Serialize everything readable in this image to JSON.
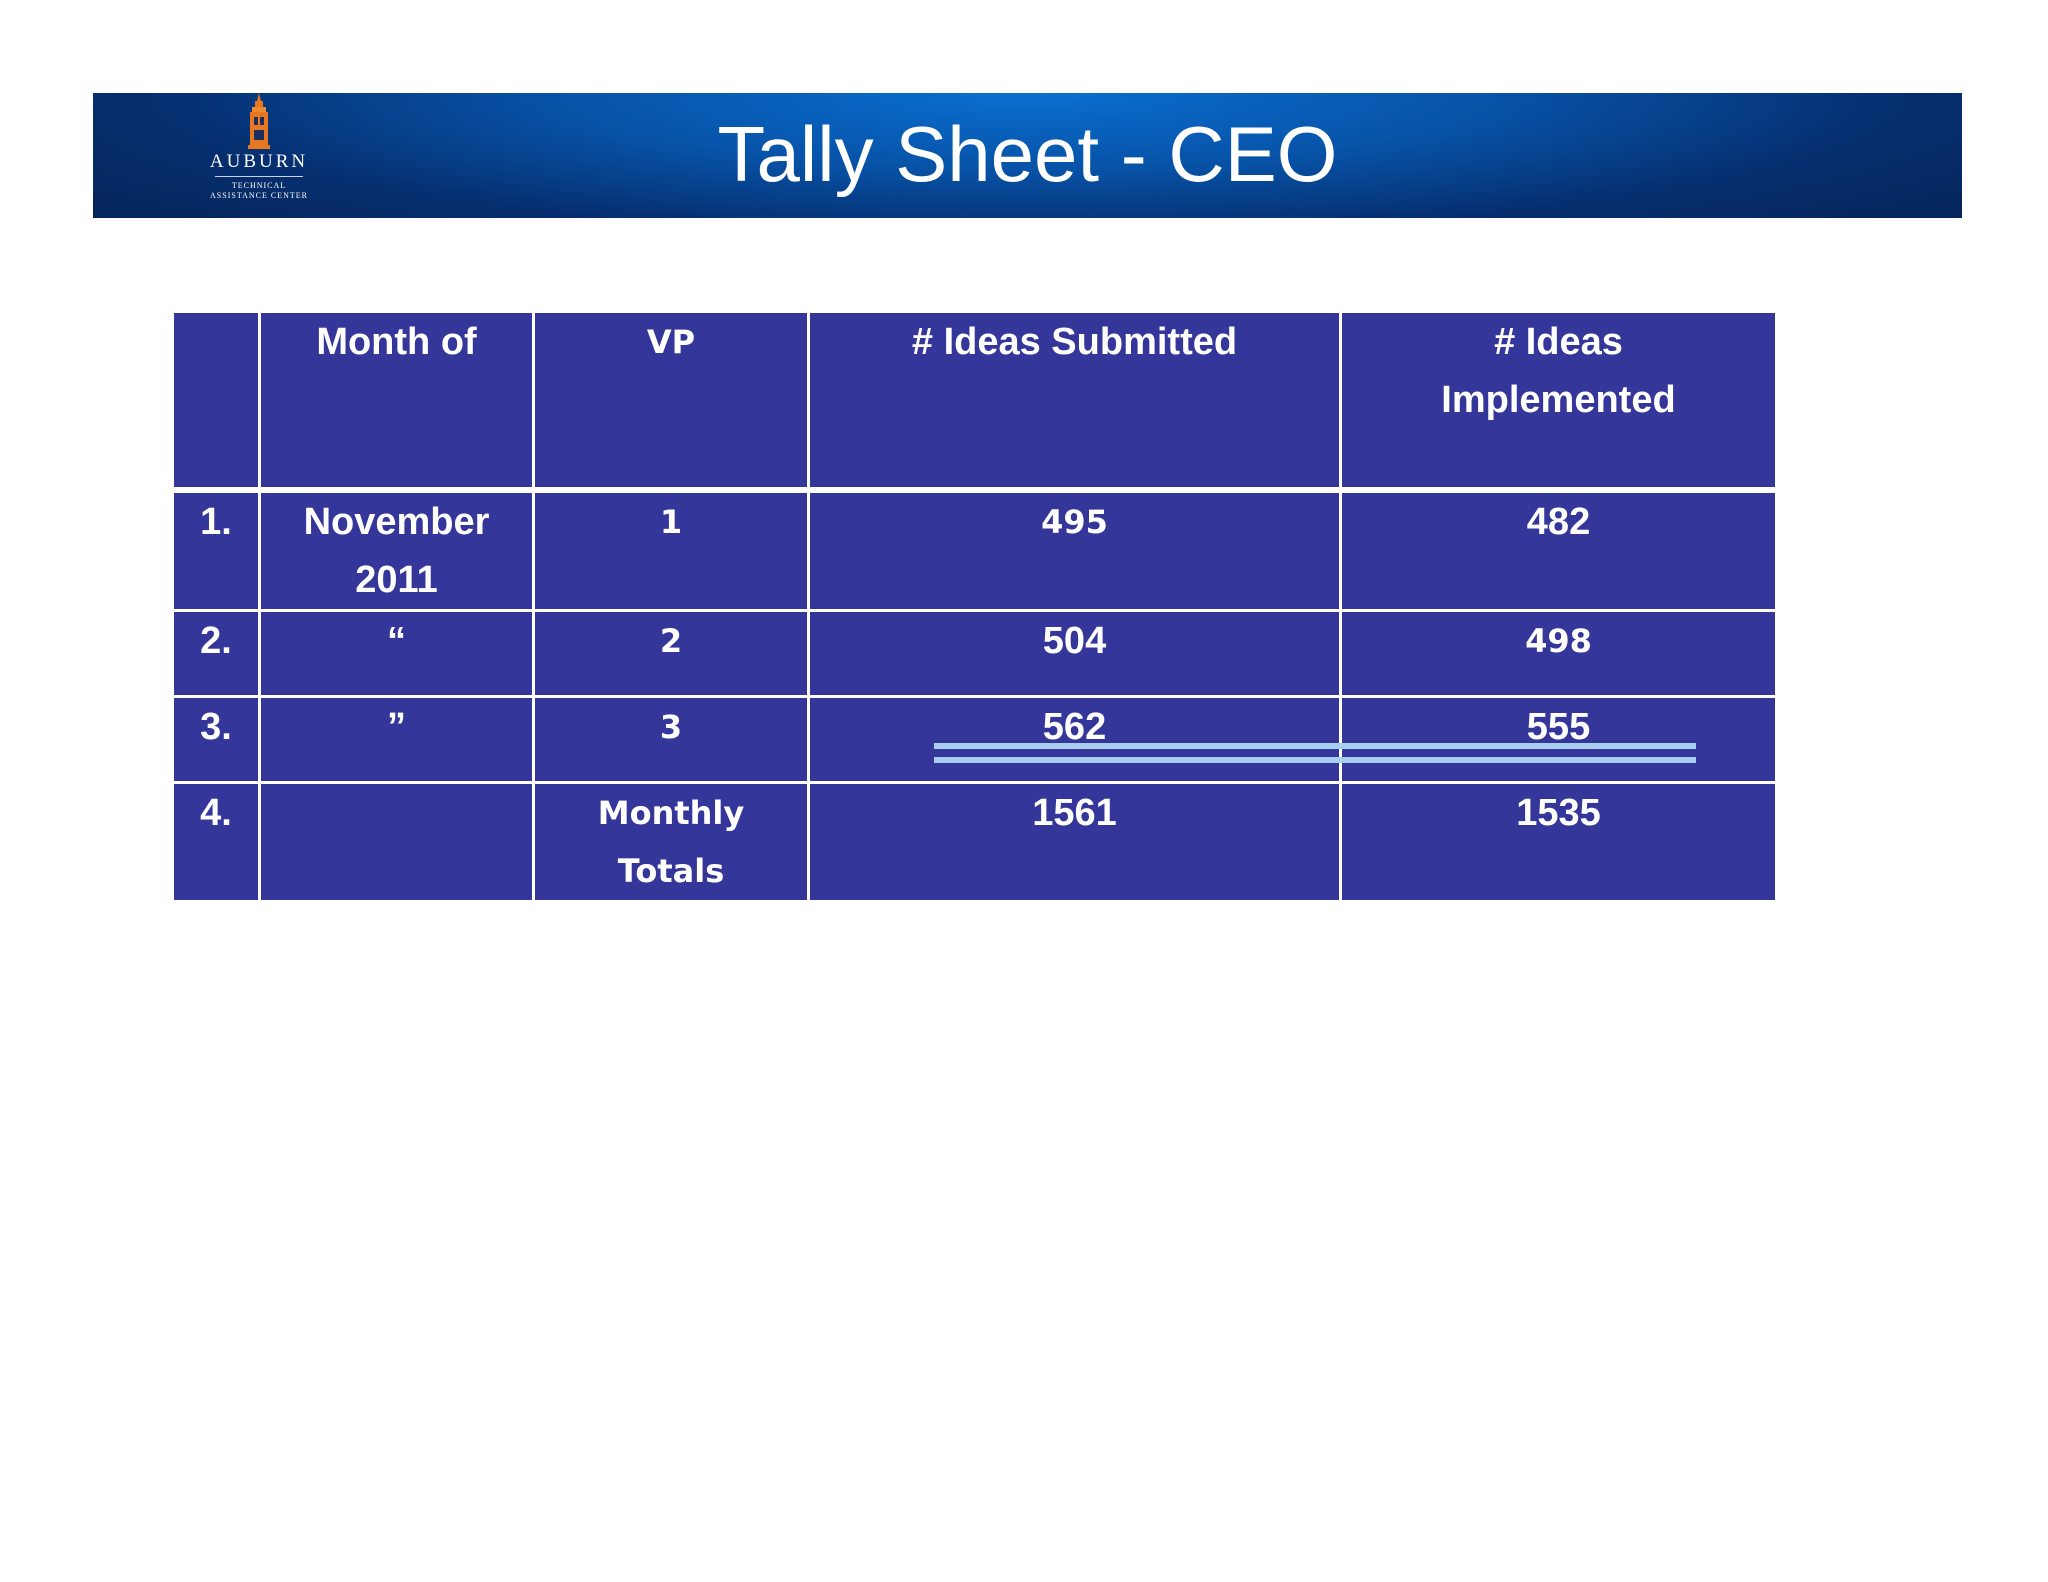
{
  "header": {
    "title": "Tally Sheet - CEO",
    "logo": {
      "name": "AUBURN",
      "line1": "TECHNICAL",
      "line2": "ASSISTANCE CENTER",
      "icon": "tower-icon"
    },
    "colors": {
      "banner": "#0753a8",
      "logo_orange": "#e87722"
    }
  },
  "table": {
    "colors": {
      "cell_bg": "#35369a",
      "text": "#ffffff",
      "underline": "#a9cfee"
    },
    "headers": [
      "",
      "Month of",
      "VP",
      "# Ideas Submitted",
      "# Ideas Implemented"
    ],
    "rows": [
      {
        "num": "1.",
        "month": "November 2011",
        "vp": "1",
        "submitted": "495",
        "implemented": "482"
      },
      {
        "num": "2.",
        "month": "“",
        "vp": "2",
        "submitted": "504",
        "implemented": "498"
      },
      {
        "num": "3.",
        "month": "”",
        "vp": "3",
        "submitted": "562",
        "implemented": "555"
      },
      {
        "num": "4.",
        "month": "",
        "vp": "Monthly Totals",
        "submitted": "1561",
        "implemented": "1535"
      }
    ]
  }
}
